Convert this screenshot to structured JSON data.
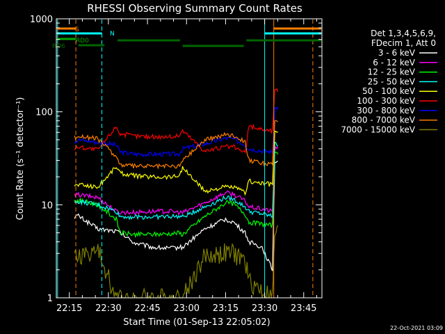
{
  "chart_data": {
    "type": "line",
    "title": "RHESSI Observing Summary Count Rates",
    "xlabel": "Start Time (01-Sep-13 22:05:02)",
    "ylabel": "Count Rate (s⁻¹ detector⁻¹)",
    "yscale": "log",
    "ylim": [
      1,
      1000
    ],
    "xlim_minutes": [
      5.0,
      107.0
    ],
    "x_tick_labels": [
      "22:15",
      "22:30",
      "22:45",
      "23:00",
      "23:15",
      "23:30",
      "23:45"
    ],
    "y_tick_labels": [
      "1",
      "10",
      "100",
      "1000"
    ],
    "timestamp": "22-Oct-2021 03:09",
    "legend_header": [
      "Det 1,3,4,5,6,9,",
      "FDecim 1, Att 0"
    ],
    "legend_position": "right",
    "flags": [
      {
        "label": "S",
        "color": "#ff7f00"
      },
      {
        "label": "N",
        "color": "#00ffff"
      },
      {
        "label": "RD0",
        "color": "#00aa00"
      },
      {
        "label": "RD6",
        "color": "#006600"
      }
    ],
    "series": [
      {
        "name": "3 - 6 keV",
        "color": "#ffffff",
        "values": [
          7.5,
          7.6,
          5.5,
          5.2,
          5.0,
          3.9,
          3.5,
          3.4,
          3.5,
          3.5,
          5.5,
          7.0,
          6.5,
          5.0,
          4.0,
          3.5,
          2.0,
          30
        ]
      },
      {
        "name": "6 - 12 keV",
        "color": "#ff00ff",
        "values": [
          12.5,
          12.8,
          12.0,
          8.5,
          8.3,
          8.3,
          8.5,
          8.5,
          8.3,
          8.2,
          10.5,
          13.5,
          13.0,
          11.0,
          9.5,
          9.0,
          8.5,
          40
        ]
      },
      {
        "name": "12 - 25 keV",
        "color": "#00ff00",
        "values": [
          11.0,
          11.2,
          10.0,
          7.0,
          5.0,
          4.8,
          4.8,
          4.9,
          5.0,
          4.8,
          7.5,
          10.5,
          10.3,
          8.0,
          6.5,
          6.2,
          6.0,
          35
        ]
      },
      {
        "name": "25 - 50 keV",
        "color": "#00ffff",
        "values": [
          10.5,
          10.8,
          10.0,
          8.5,
          7.5,
          7.4,
          7.4,
          7.5,
          7.5,
          7.4,
          9.5,
          12.0,
          11.5,
          9.5,
          8.5,
          8.0,
          7.5,
          45
        ]
      },
      {
        "name": "50 - 100 keV",
        "color": "#ffff00",
        "values": [
          16.0,
          16.5,
          15.5,
          26.0,
          22.0,
          20.5,
          20.0,
          20.0,
          20.5,
          25.0,
          14.0,
          15.5,
          15.5,
          13.5,
          18.0,
          17.0,
          16.5,
          60
        ]
      },
      {
        "name": "100 - 300 keV",
        "color": "#ff0000",
        "values": [
          40.0,
          42.0,
          39.0,
          70.0,
          58.0,
          55.0,
          54.0,
          54.0,
          55.0,
          63.0,
          38.0,
          42.0,
          42.0,
          36.0,
          70.0,
          65.0,
          62.0,
          170
        ]
      },
      {
        "name": "300 - 800 keV",
        "color": "#0000ff",
        "values": [
          48.0,
          50.0,
          47.0,
          44.0,
          37.0,
          35.0,
          35.0,
          35.0,
          35.0,
          40.0,
          45.0,
          52.0,
          51.0,
          44.0,
          40.0,
          38.0,
          37.0,
          110
        ]
      },
      {
        "name": "800 - 7000 keV",
        "color": "#ff7f00",
        "values": [
          53.0,
          55.0,
          51.0,
          33.0,
          27.0,
          26.0,
          26.0,
          26.0,
          26.0,
          30.0,
          50.0,
          57.0,
          56.0,
          48.0,
          30.0,
          28.0,
          27.0,
          80
        ]
      },
      {
        "name": "7000 - 15000 keV",
        "color": "#808000",
        "values": [
          2.7,
          2.8,
          3.2,
          1.0,
          1.0,
          1.0,
          1.0,
          1.0,
          1.0,
          1.0,
          2.8,
          3.0,
          3.0,
          2.5,
          1.5,
          1.2,
          1.0,
          5.0
        ]
      }
    ]
  }
}
